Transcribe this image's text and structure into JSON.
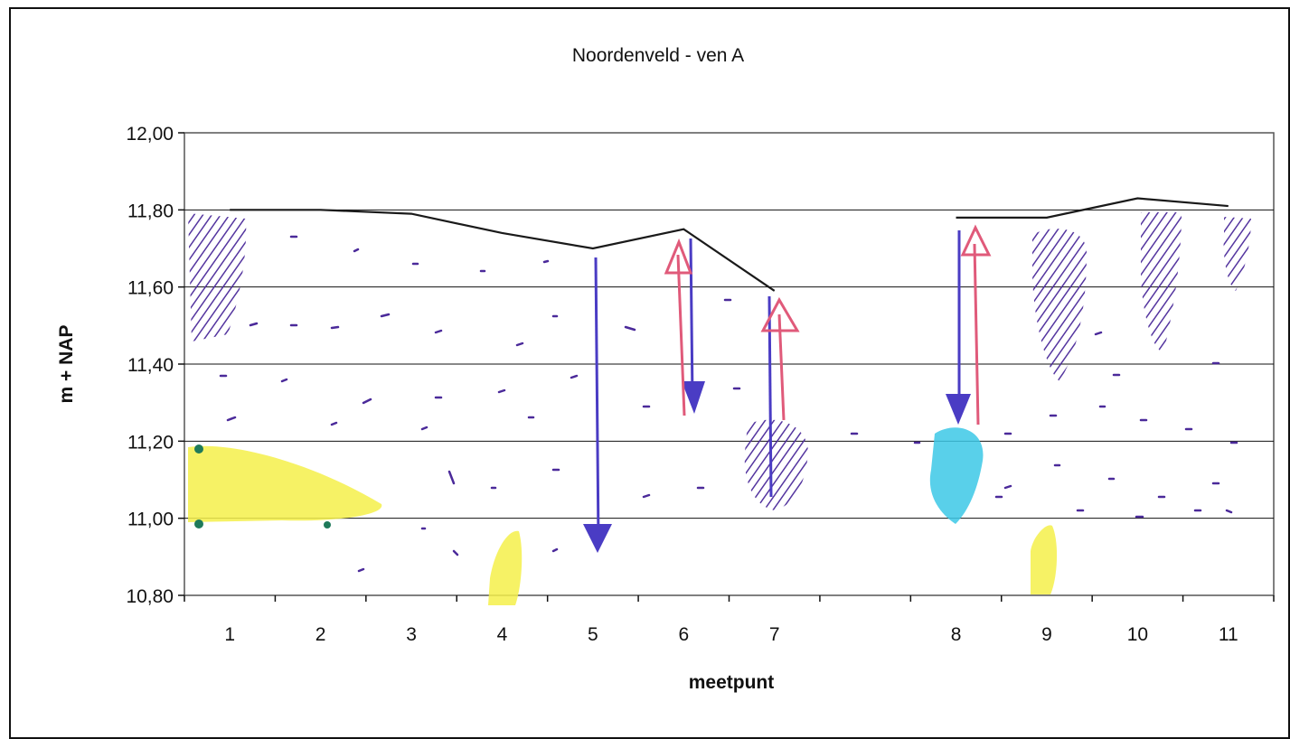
{
  "chart_data": {
    "type": "line",
    "title": "Noordenveld - ven A",
    "xlabel": "meetpunt",
    "ylabel": "m + NAP",
    "ylim": [
      10.8,
      12.0
    ],
    "ytick_step": 0.2,
    "yticks": [
      "10,80",
      "11,00",
      "11,20",
      "11,40",
      "11,60",
      "11,80",
      "12,00"
    ],
    "x_slots": 12,
    "categories": [
      {
        "label": "1",
        "slot": 0.5
      },
      {
        "label": "2",
        "slot": 1.5
      },
      {
        "label": "3",
        "slot": 2.5
      },
      {
        "label": "4",
        "slot": 3.5
      },
      {
        "label": "5",
        "slot": 4.5
      },
      {
        "label": "6",
        "slot": 5.5
      },
      {
        "label": "7",
        "slot": 6.5
      },
      {
        "label": "8",
        "slot": 8.5
      },
      {
        "label": "9",
        "slot": 9.5
      },
      {
        "label": "10",
        "slot": 10.5
      },
      {
        "label": "11",
        "slot": 11.5
      }
    ],
    "series": [
      {
        "values": [
          [
            0.5,
            11.8
          ],
          [
            1.5,
            11.8
          ],
          [
            2.5,
            11.79
          ],
          [
            3.5,
            11.74
          ],
          [
            4.5,
            11.7
          ],
          [
            5.5,
            11.75
          ],
          [
            6.5,
            11.59
          ]
        ],
        "color": "#1a1a1a"
      },
      {
        "values": [
          [
            8.5,
            11.78
          ],
          [
            9.5,
            11.78
          ],
          [
            10.5,
            11.83
          ],
          [
            11.5,
            11.81
          ]
        ],
        "color": "#1a1a1a"
      }
    ],
    "grid": true,
    "annotation_colors": {
      "purple": "#4b2a9a",
      "blue_arrow": "#4a3cc4",
      "red_arrow": "#e05a7a",
      "yellow": "#f4f04a",
      "cyan": "#3cc8e6",
      "green": "#1f7a5a"
    }
  }
}
